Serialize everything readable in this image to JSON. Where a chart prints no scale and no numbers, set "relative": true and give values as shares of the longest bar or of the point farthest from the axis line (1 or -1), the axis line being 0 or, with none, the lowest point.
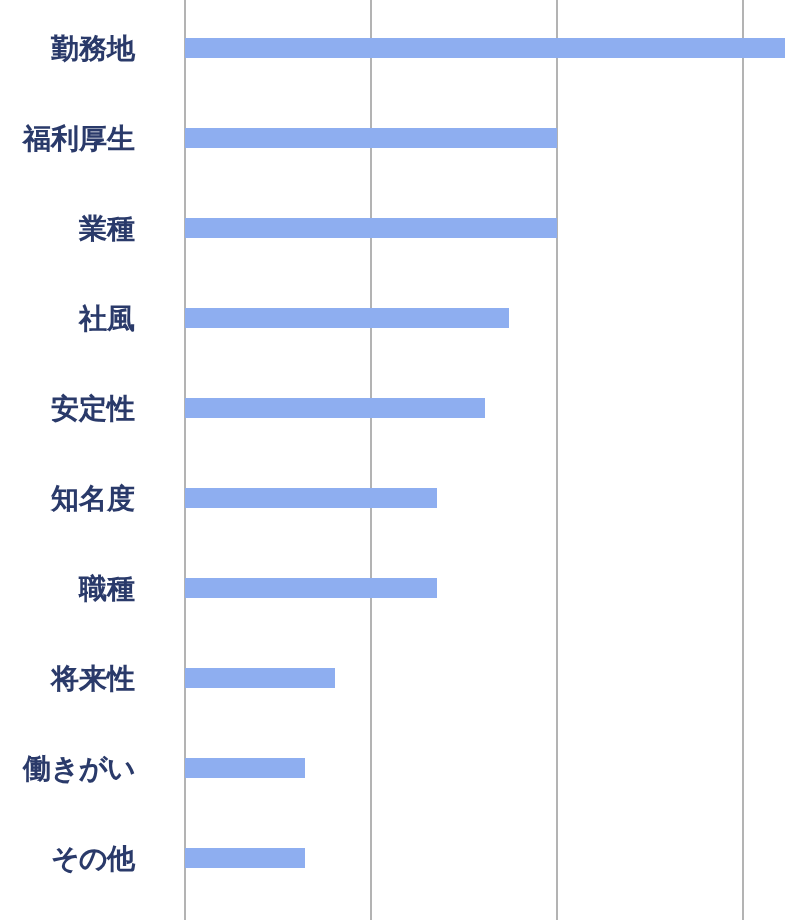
{
  "chart_data": {
    "type": "bar",
    "orientation": "horizontal",
    "relative": true,
    "grid": true,
    "categories": [
      "勤務地",
      "福利厚生",
      "業種",
      "社風",
      "安定性",
      "知名度",
      "職種",
      "将来性",
      "働きがい",
      "その他"
    ],
    "values": [
      1,
      0.62,
      0.62,
      0.54,
      0.5,
      0.42,
      0.42,
      0.25,
      0.2,
      0.2
    ],
    "color": "#8eaef0"
  }
}
